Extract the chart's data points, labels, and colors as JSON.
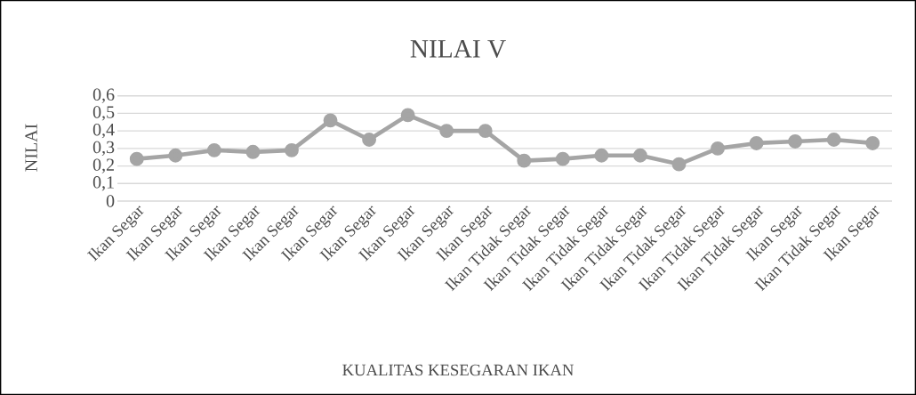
{
  "chart_data": {
    "type": "line",
    "title": "NILAI V",
    "xlabel": "KUALITAS KESEGARAN IKAN",
    "ylabel": "NILAI",
    "categories": [
      "Ikan Segar",
      "Ikan Segar",
      "Ikan Segar",
      "Ikan Segar",
      "Ikan Segar",
      "Ikan Segar",
      "Ikan Segar",
      "Ikan Segar",
      "Ikan Segar",
      "Ikan Segar",
      "Ikan Tidak Segar",
      "Ikan Tidak Segar",
      "Ikan Tidak Segar",
      "Ikan Tidak Segar",
      "Ikan Tidak Segar",
      "Ikan Tidak Segar",
      "Ikan Tidak Segar",
      "Ikan Segar",
      "Ikan Tidak Segar",
      "Ikan Segar"
    ],
    "series": [
      {
        "color": "#a5a5a5",
        "values": [
          0.24,
          0.26,
          0.29,
          0.28,
          0.29,
          0.46,
          0.35,
          0.49,
          0.4,
          0.4,
          0.23,
          0.24,
          0.26,
          0.26,
          0.21,
          0.3,
          0.33,
          0.34,
          0.35,
          0.33
        ]
      }
    ],
    "ylim": [
      0,
      0.6
    ],
    "yticks": [
      {
        "value": 0,
        "label": "0"
      },
      {
        "value": 0.1,
        "label": "0,1"
      },
      {
        "value": 0.2,
        "label": "0,2"
      },
      {
        "value": 0.3,
        "label": "0,3"
      },
      {
        "value": 0.4,
        "label": "0,4"
      },
      {
        "value": 0.5,
        "label": "0,5"
      },
      {
        "value": 0.6,
        "label": "0,6"
      }
    ],
    "grid": "y",
    "marker": "circle",
    "line_style": "solid"
  }
}
